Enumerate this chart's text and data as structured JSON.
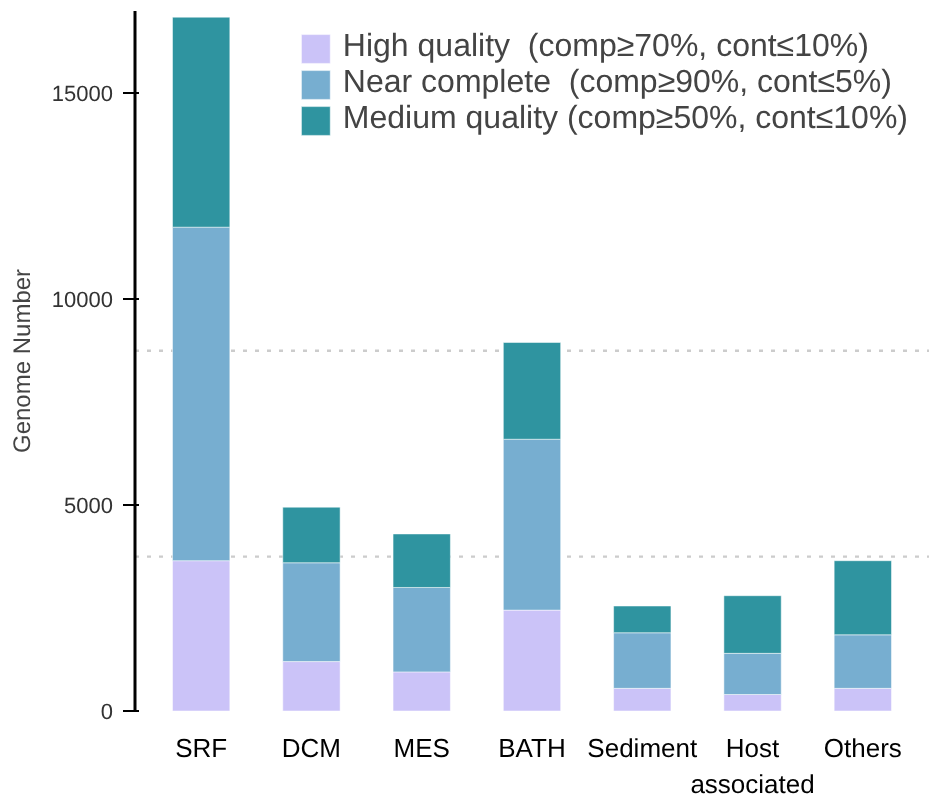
{
  "chart_data": {
    "type": "bar",
    "stacked": true,
    "ylabel": "Genome Number",
    "categories": [
      "SRF",
      "DCM",
      "MES",
      "BATH",
      "Sediment",
      "Host associated",
      "Others"
    ],
    "series": [
      {
        "name": "High quality  (comp≥70%, cont≤10%)",
        "color": "#cbc3f8",
        "values": [
          3650,
          1200,
          950,
          2450,
          550,
          400,
          550
        ]
      },
      {
        "name": "Near complete  (comp≥90%, cont≤5%)",
        "color": "#77aed0",
        "values": [
          8100,
          2400,
          2050,
          4150,
          1350,
          1000,
          1300
        ]
      },
      {
        "name": "Medium quality (comp≥50%, cont≤10%)",
        "color": "#2f94a0",
        "values": [
          5100,
          1350,
          1300,
          2350,
          650,
          1400,
          1800
        ]
      }
    ],
    "ylim": [
      0,
      17000
    ],
    "yticks": [
      0,
      5000,
      10000,
      15000
    ],
    "ref_lines": [
      {
        "axis": "y",
        "value": 8750,
        "color": "#cccccc",
        "line_style": "dotted"
      },
      {
        "axis": "y",
        "value": 3750,
        "color": "#cccccc",
        "line_style": "dotted"
      }
    ],
    "grid": false,
    "legend": "top right"
  }
}
